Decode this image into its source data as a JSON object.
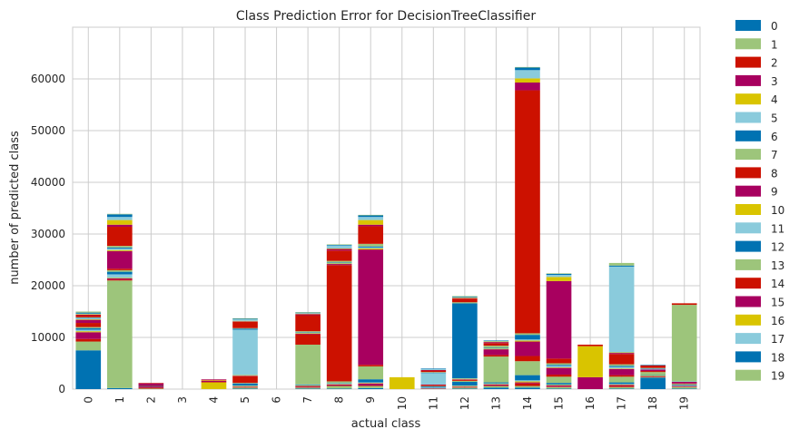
{
  "chart_data": {
    "type": "bar",
    "stacked": true,
    "title": "Class Prediction Error for DecisionTreeClassifier",
    "xlabel": "actual class",
    "ylabel": "number of predicted class",
    "ylim": [
      0,
      70000
    ],
    "yticks": [
      0,
      10000,
      20000,
      30000,
      40000,
      50000,
      60000
    ],
    "grid": true,
    "legend": "right",
    "categories": [
      "0",
      "1",
      "2",
      "3",
      "4",
      "5",
      "6",
      "7",
      "8",
      "9",
      "10",
      "11",
      "12",
      "13",
      "14",
      "15",
      "16",
      "17",
      "18",
      "19"
    ],
    "series": [
      {
        "name": "0",
        "color": "#0072b2",
        "values": [
          7500,
          200,
          0,
          0,
          0,
          100,
          0,
          100,
          100,
          200,
          0,
          0,
          100,
          300,
          300,
          100,
          0,
          100,
          2200,
          100
        ]
      },
      {
        "name": "1",
        "color": "#9dc57b",
        "values": [
          1700,
          20800,
          100,
          0,
          0,
          200,
          0,
          200,
          500,
          400,
          0,
          100,
          200,
          300,
          300,
          300,
          0,
          300,
          100,
          300
        ]
      },
      {
        "name": "2",
        "color": "#cc1100",
        "values": [
          500,
          200,
          200,
          0,
          0,
          100,
          0,
          100,
          100,
          100,
          0,
          0,
          100,
          100,
          500,
          100,
          0,
          200,
          100,
          100
        ]
      },
      {
        "name": "3",
        "color": "#a8005f",
        "values": [
          1300,
          200,
          200,
          0,
          0,
          100,
          0,
          200,
          200,
          400,
          0,
          100,
          100,
          200,
          200,
          200,
          0,
          200,
          100,
          100
        ]
      },
      {
        "name": "4",
        "color": "#d9c400",
        "values": [
          200,
          100,
          0,
          0,
          1300,
          100,
          0,
          100,
          100,
          100,
          0,
          0,
          100,
          100,
          200,
          100,
          0,
          100,
          100,
          0
        ]
      },
      {
        "name": "5",
        "color": "#8acbdc",
        "values": [
          300,
          700,
          0,
          0,
          0,
          100,
          0,
          100,
          100,
          100,
          0,
          100,
          100,
          100,
          200,
          100,
          0,
          100,
          0,
          100
        ]
      },
      {
        "name": "6",
        "color": "#0072b2",
        "values": [
          300,
          500,
          100,
          0,
          0,
          400,
          0,
          100,
          100,
          600,
          0,
          200,
          700,
          200,
          1000,
          300,
          0,
          300,
          100,
          100
        ]
      },
      {
        "name": "7",
        "color": "#9dc57b",
        "values": [
          200,
          300,
          0,
          0,
          0,
          100,
          0,
          7700,
          300,
          2500,
          0,
          100,
          200,
          5000,
          2700,
          1200,
          0,
          1100,
          600,
          200
        ]
      },
      {
        "name": "8",
        "color": "#cc1100",
        "values": [
          800,
          300,
          100,
          0,
          100,
          1300,
          0,
          2000,
          22500,
          300,
          0,
          200,
          200,
          300,
          1000,
          400,
          0,
          300,
          200,
          100
        ]
      },
      {
        "name": "9",
        "color": "#a8005f",
        "values": [
          600,
          3400,
          400,
          0,
          200,
          100,
          0,
          100,
          200,
          22300,
          0,
          100,
          100,
          1100,
          2800,
          1300,
          2300,
          1200,
          300,
          300
        ]
      },
      {
        "name": "10",
        "color": "#d9c400",
        "values": [
          100,
          200,
          0,
          0,
          100,
          100,
          0,
          100,
          100,
          200,
          2300,
          0,
          100,
          100,
          200,
          100,
          6000,
          100,
          0,
          0
        ]
      },
      {
        "name": "11",
        "color": "#8acbdc",
        "values": [
          200,
          300,
          0,
          0,
          0,
          8800,
          0,
          100,
          100,
          200,
          0,
          2200,
          100,
          100,
          200,
          300,
          0,
          300,
          100,
          100
        ]
      },
      {
        "name": "12",
        "color": "#0072b2",
        "values": [
          100,
          200,
          0,
          0,
          0,
          200,
          0,
          100,
          100,
          200,
          0,
          100,
          14500,
          100,
          900,
          200,
          0,
          200,
          100,
          0
        ]
      },
      {
        "name": "13",
        "color": "#9dc57b",
        "values": [
          100,
          300,
          0,
          0,
          0,
          100,
          0,
          200,
          300,
          500,
          0,
          100,
          200,
          400,
          300,
          300,
          0,
          300,
          100,
          14800
        ]
      },
      {
        "name": "14",
        "color": "#cc1100",
        "values": [
          400,
          3700,
          100,
          0,
          100,
          1200,
          0,
          3100,
          2000,
          3400,
          0,
          300,
          700,
          500,
          47000,
          900,
          300,
          2000,
          500,
          300
        ]
      },
      {
        "name": "15",
        "color": "#a8005f",
        "values": [
          100,
          400,
          0,
          0,
          100,
          100,
          0,
          200,
          300,
          300,
          0,
          100,
          100,
          200,
          1500,
          15000,
          0,
          200,
          0,
          0
        ]
      },
      {
        "name": "16",
        "color": "#d9c400",
        "values": [
          100,
          900,
          0,
          0,
          0,
          100,
          0,
          100,
          100,
          900,
          0,
          0,
          100,
          100,
          800,
          800,
          0,
          100,
          0,
          0
        ]
      },
      {
        "name": "17",
        "color": "#8acbdc",
        "values": [
          100,
          600,
          0,
          0,
          0,
          300,
          0,
          100,
          600,
          600,
          0,
          200,
          100,
          100,
          1600,
          400,
          0,
          16600,
          0,
          0
        ]
      },
      {
        "name": "18",
        "color": "#0072b2",
        "values": [
          200,
          500,
          0,
          0,
          0,
          100,
          0,
          100,
          100,
          300,
          0,
          100,
          100,
          100,
          500,
          200,
          0,
          200,
          100,
          0
        ]
      },
      {
        "name": "19",
        "color": "#9dc57b",
        "values": [
          200,
          100,
          0,
          0,
          0,
          100,
          0,
          100,
          100,
          100,
          0,
          0,
          100,
          0,
          100,
          100,
          0,
          500,
          0,
          0
        ]
      }
    ]
  }
}
